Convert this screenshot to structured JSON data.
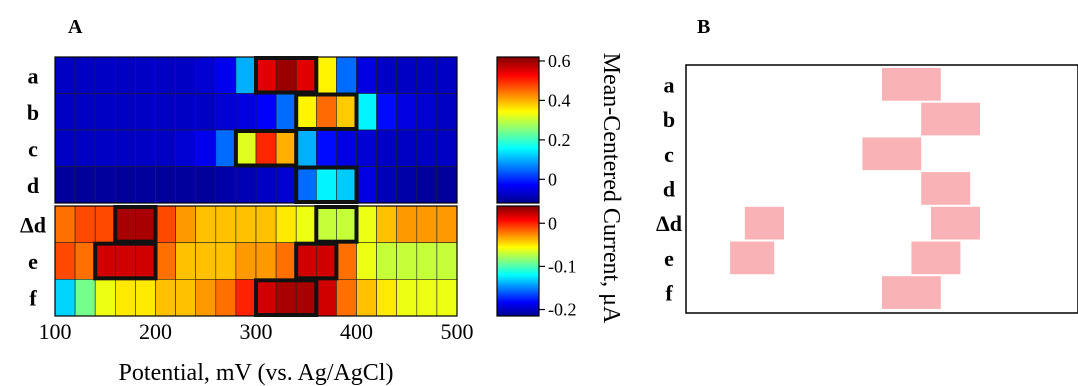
{
  "panels": {
    "a": "A",
    "b": "B"
  },
  "chart_data": [
    {
      "type": "heatmap",
      "panel": "A",
      "x": [
        110,
        130,
        150,
        170,
        190,
        210,
        230,
        250,
        270,
        290,
        310,
        330,
        350,
        370,
        390,
        410,
        430,
        450,
        470,
        490
      ],
      "xlim": [
        100,
        500
      ],
      "xticks": [
        "100",
        "200",
        "300",
        "400",
        "500"
      ],
      "xlabel": "Potential, mV (vs. Ag/AgCl)",
      "colorbar_label": "Mean-Centered Current, μA",
      "colorbar_top": {
        "ticks": [
          "0.6",
          "0.4",
          "0.2",
          "0"
        ],
        "range": [
          -0.12,
          0.62
        ]
      },
      "colorbar_bottom": {
        "ticks": [
          "0",
          "-0.1",
          "-0.2"
        ],
        "range": [
          -0.215,
          0.04
        ]
      },
      "groups": [
        {
          "rows": [
            "a",
            "b",
            "c",
            "d"
          ],
          "scale": "top",
          "values": [
            [
              -0.07,
              -0.07,
              -0.07,
              -0.07,
              -0.07,
              -0.07,
              -0.07,
              -0.06,
              -0.04,
              0.1,
              0.55,
              0.6,
              0.55,
              0.35,
              0.05,
              -0.05,
              -0.07,
              -0.07,
              -0.07,
              -0.07
            ],
            [
              -0.07,
              -0.07,
              -0.07,
              -0.07,
              -0.07,
              -0.07,
              -0.07,
              -0.07,
              -0.06,
              -0.05,
              -0.03,
              0.05,
              0.35,
              0.45,
              0.38,
              0.15,
              -0.02,
              -0.05,
              -0.06,
              -0.07
            ],
            [
              -0.07,
              -0.07,
              -0.07,
              -0.07,
              -0.07,
              -0.07,
              -0.06,
              -0.04,
              0.05,
              0.32,
              0.5,
              0.4,
              0.1,
              -0.02,
              -0.05,
              -0.06,
              -0.07,
              -0.07,
              -0.07,
              -0.07
            ],
            [
              -0.1,
              -0.1,
              -0.1,
              -0.1,
              -0.1,
              -0.1,
              -0.1,
              -0.1,
              -0.09,
              -0.08,
              -0.07,
              -0.06,
              0.05,
              0.15,
              0.12,
              -0.05,
              -0.08,
              -0.09,
              -0.1,
              -0.1
            ]
          ],
          "highlights": [
            {
              "row": "a",
              "x": [
                300,
                360
              ]
            },
            {
              "row": "b",
              "x": [
                340,
                400
              ]
            },
            {
              "row": "c",
              "x": [
                280,
                340
              ]
            },
            {
              "row": "d",
              "x": [
                340,
                400
              ]
            }
          ]
        },
        {
          "rows": [
            "Δd",
            "e",
            "f"
          ],
          "scale": "bottom",
          "values": [
            [
              -0.02,
              -0.01,
              -0.01,
              0.03,
              0.03,
              -0.01,
              -0.03,
              -0.04,
              -0.04,
              -0.04,
              -0.04,
              -0.05,
              -0.06,
              -0.07,
              -0.07,
              -0.06,
              -0.04,
              -0.03,
              -0.03,
              -0.03
            ],
            [
              -0.01,
              -0.02,
              0.02,
              0.02,
              0.02,
              -0.02,
              -0.04,
              -0.04,
              -0.04,
              -0.03,
              -0.03,
              -0.02,
              0.02,
              0.02,
              -0.02,
              -0.06,
              -0.07,
              -0.07,
              -0.07,
              -0.07
            ],
            [
              -0.13,
              -0.09,
              -0.06,
              -0.05,
              -0.05,
              -0.04,
              -0.04,
              -0.03,
              -0.02,
              0.0,
              0.02,
              0.03,
              0.03,
              0.02,
              -0.02,
              -0.04,
              -0.05,
              -0.06,
              -0.06,
              -0.06
            ]
          ],
          "highlights": [
            {
              "row": "Δd",
              "x": [
                160,
                200
              ]
            },
            {
              "row": "e",
              "x": [
                140,
                200
              ]
            },
            {
              "row": "f",
              "x": [
                300,
                360
              ]
            },
            {
              "row": "Δd",
              "x": [
                360,
                400
              ]
            },
            {
              "row": "e",
              "x": [
                340,
                380
              ]
            }
          ]
        }
      ]
    },
    {
      "type": "range",
      "panel": "B",
      "rows": [
        "a",
        "b",
        "c",
        "d",
        "Δd",
        "e",
        "f"
      ],
      "color": "#f9b3b7",
      "ranges": [
        {
          "row": "a",
          "x": [
            300,
            360
          ]
        },
        {
          "row": "b",
          "x": [
            340,
            400
          ]
        },
        {
          "row": "c",
          "x": [
            280,
            340
          ]
        },
        {
          "row": "d",
          "x": [
            340,
            390
          ]
        },
        {
          "row": "Δd",
          "x": [
            160,
            200
          ]
        },
        {
          "row": "Δd",
          "x": [
            350,
            400
          ]
        },
        {
          "row": "e",
          "x": [
            145,
            190
          ]
        },
        {
          "row": "e",
          "x": [
            330,
            380
          ]
        },
        {
          "row": "f",
          "x": [
            300,
            360
          ]
        }
      ]
    }
  ]
}
